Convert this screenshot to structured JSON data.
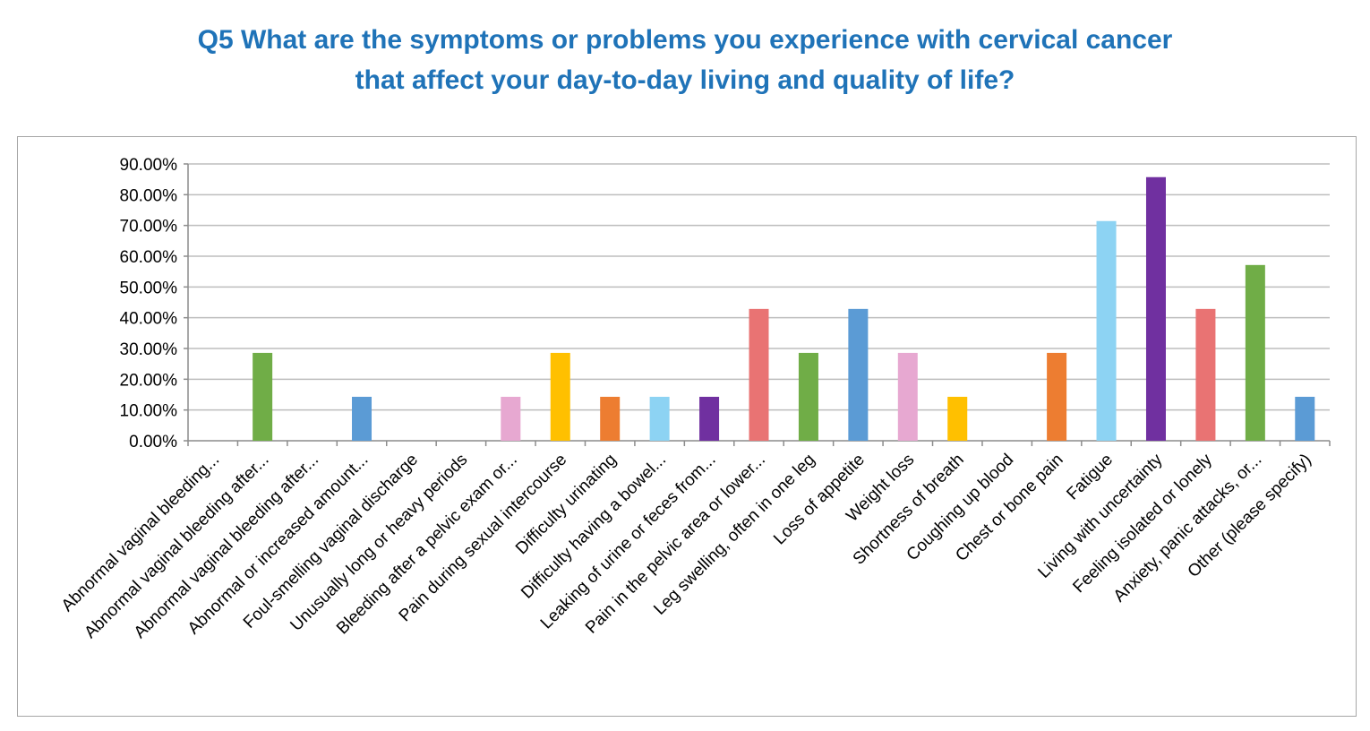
{
  "chart_data": {
    "type": "bar",
    "title_lines": [
      "Q5 What are the symptoms or problems you experience with cervical cancer",
      "that affect your day-to-day living and quality of life?"
    ],
    "xlabel": "",
    "ylabel": "",
    "ylim": [
      0,
      90
    ],
    "yticks": [
      0,
      10,
      20,
      30,
      40,
      50,
      60,
      70,
      80,
      90
    ],
    "ytick_labels": [
      "0.00%",
      "10.00%",
      "20.00%",
      "30.00%",
      "40.00%",
      "50.00%",
      "60.00%",
      "70.00%",
      "80.00%",
      "90.00%"
    ],
    "grid": true,
    "legend": "none",
    "categories": [
      "Abnormal vaginal bleeding...",
      "Abnormal vaginal bleeding after...",
      "Abnormal vaginal bleeding after...",
      "Abnormal or increased amount...",
      "Foul-smelling vaginal discharge",
      "Unusually long or heavy periods",
      "Bleeding after a pelvic exam or...",
      "Pain during sexual intercourse",
      "Difficulty urinating",
      "Difficulty having a bowel...",
      "Leaking of urine or feces from...",
      "Pain in the pelvic area or lower...",
      "Leg swelling, often in one leg",
      "Loss of appetite",
      "Weight loss",
      "Shortness of breath",
      "Coughing up blood",
      "Chest or bone pain",
      "Fatigue",
      "Living with uncertainty",
      "Feeling isolated or lonely",
      "Anxiety, panic attacks, or...",
      "Other (please specify)"
    ],
    "values": [
      0,
      28.57,
      0,
      14.29,
      0,
      0,
      14.29,
      28.57,
      14.29,
      14.29,
      14.29,
      42.86,
      28.57,
      42.86,
      28.57,
      14.29,
      0,
      28.57,
      71.43,
      85.71,
      42.86,
      57.14,
      14.29
    ],
    "colors": [
      "#4a7ebb",
      "#70ad47",
      "#a9a9a9",
      "#5b9bd5",
      "#c0504d",
      "#8064a2",
      "#e7a8d1",
      "#ffc000",
      "#ed7d31",
      "#8dd3f3",
      "#7030a0",
      "#e97373",
      "#70ad47",
      "#5b9bd5",
      "#e7a8d1",
      "#ffc000",
      "#a9a9a9",
      "#ed7d31",
      "#8dd3f3",
      "#7030a0",
      "#e97373",
      "#70ad47",
      "#5b9bd5"
    ]
  }
}
